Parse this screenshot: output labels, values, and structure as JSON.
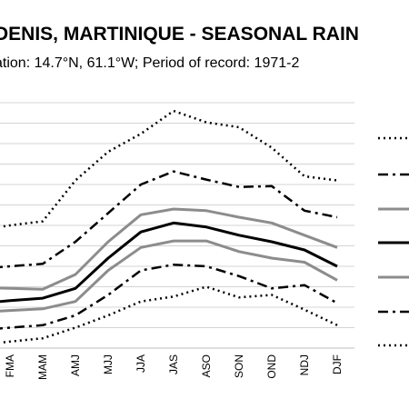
{
  "chart_data": {
    "type": "line",
    "title": "DENIS, MARTINIQUE - SEASONAL RAIN",
    "subtitle": "ation: 14.7°N, 61.1°W; Period of record: 1971-2",
    "categories": [
      "FMA",
      "MAM",
      "AMJ",
      "MJJ",
      "JJA",
      "JAS",
      "ASO",
      "SON",
      "OND",
      "NDJ",
      "DJF"
    ],
    "xlabel": "",
    "ylabel": "",
    "grid": true,
    "legend_position": "right",
    "series": [
      {
        "style": "dotted",
        "color": "#000000",
        "values": [
          250,
          255,
          305,
          340,
          362,
          390,
          376,
          370,
          345,
          310,
          305
        ]
      },
      {
        "style": "dashdot",
        "color": "#000000",
        "values": [
          200,
          203,
          230,
          265,
          300,
          316,
          306,
          297,
          298,
          268,
          260
        ]
      },
      {
        "style": "solid",
        "color": "#8c8c8c",
        "values": [
          173,
          172,
          190,
          230,
          263,
          270,
          268,
          260,
          253,
          238,
          223
        ]
      },
      {
        "style": "solid",
        "color": "#000000",
        "values": [
          158,
          161,
          173,
          210,
          242,
          253,
          248,
          238,
          230,
          220,
          200
        ]
      },
      {
        "style": "solid",
        "color": "#8c8c8c",
        "values": [
          146,
          148,
          157,
          195,
          223,
          231,
          231,
          218,
          210,
          205,
          183
        ]
      },
      {
        "style": "dashdot",
        "color": "#000000",
        "values": [
          125,
          128,
          140,
          165,
          195,
          202,
          200,
          188,
          173,
          177,
          155
        ]
      },
      {
        "style": "dotted",
        "color": "#000000",
        "values": [
          108,
          112,
          125,
          140,
          157,
          163,
          175,
          162,
          165,
          147,
          128
        ]
      }
    ],
    "ylim": [
      100,
      400
    ]
  }
}
